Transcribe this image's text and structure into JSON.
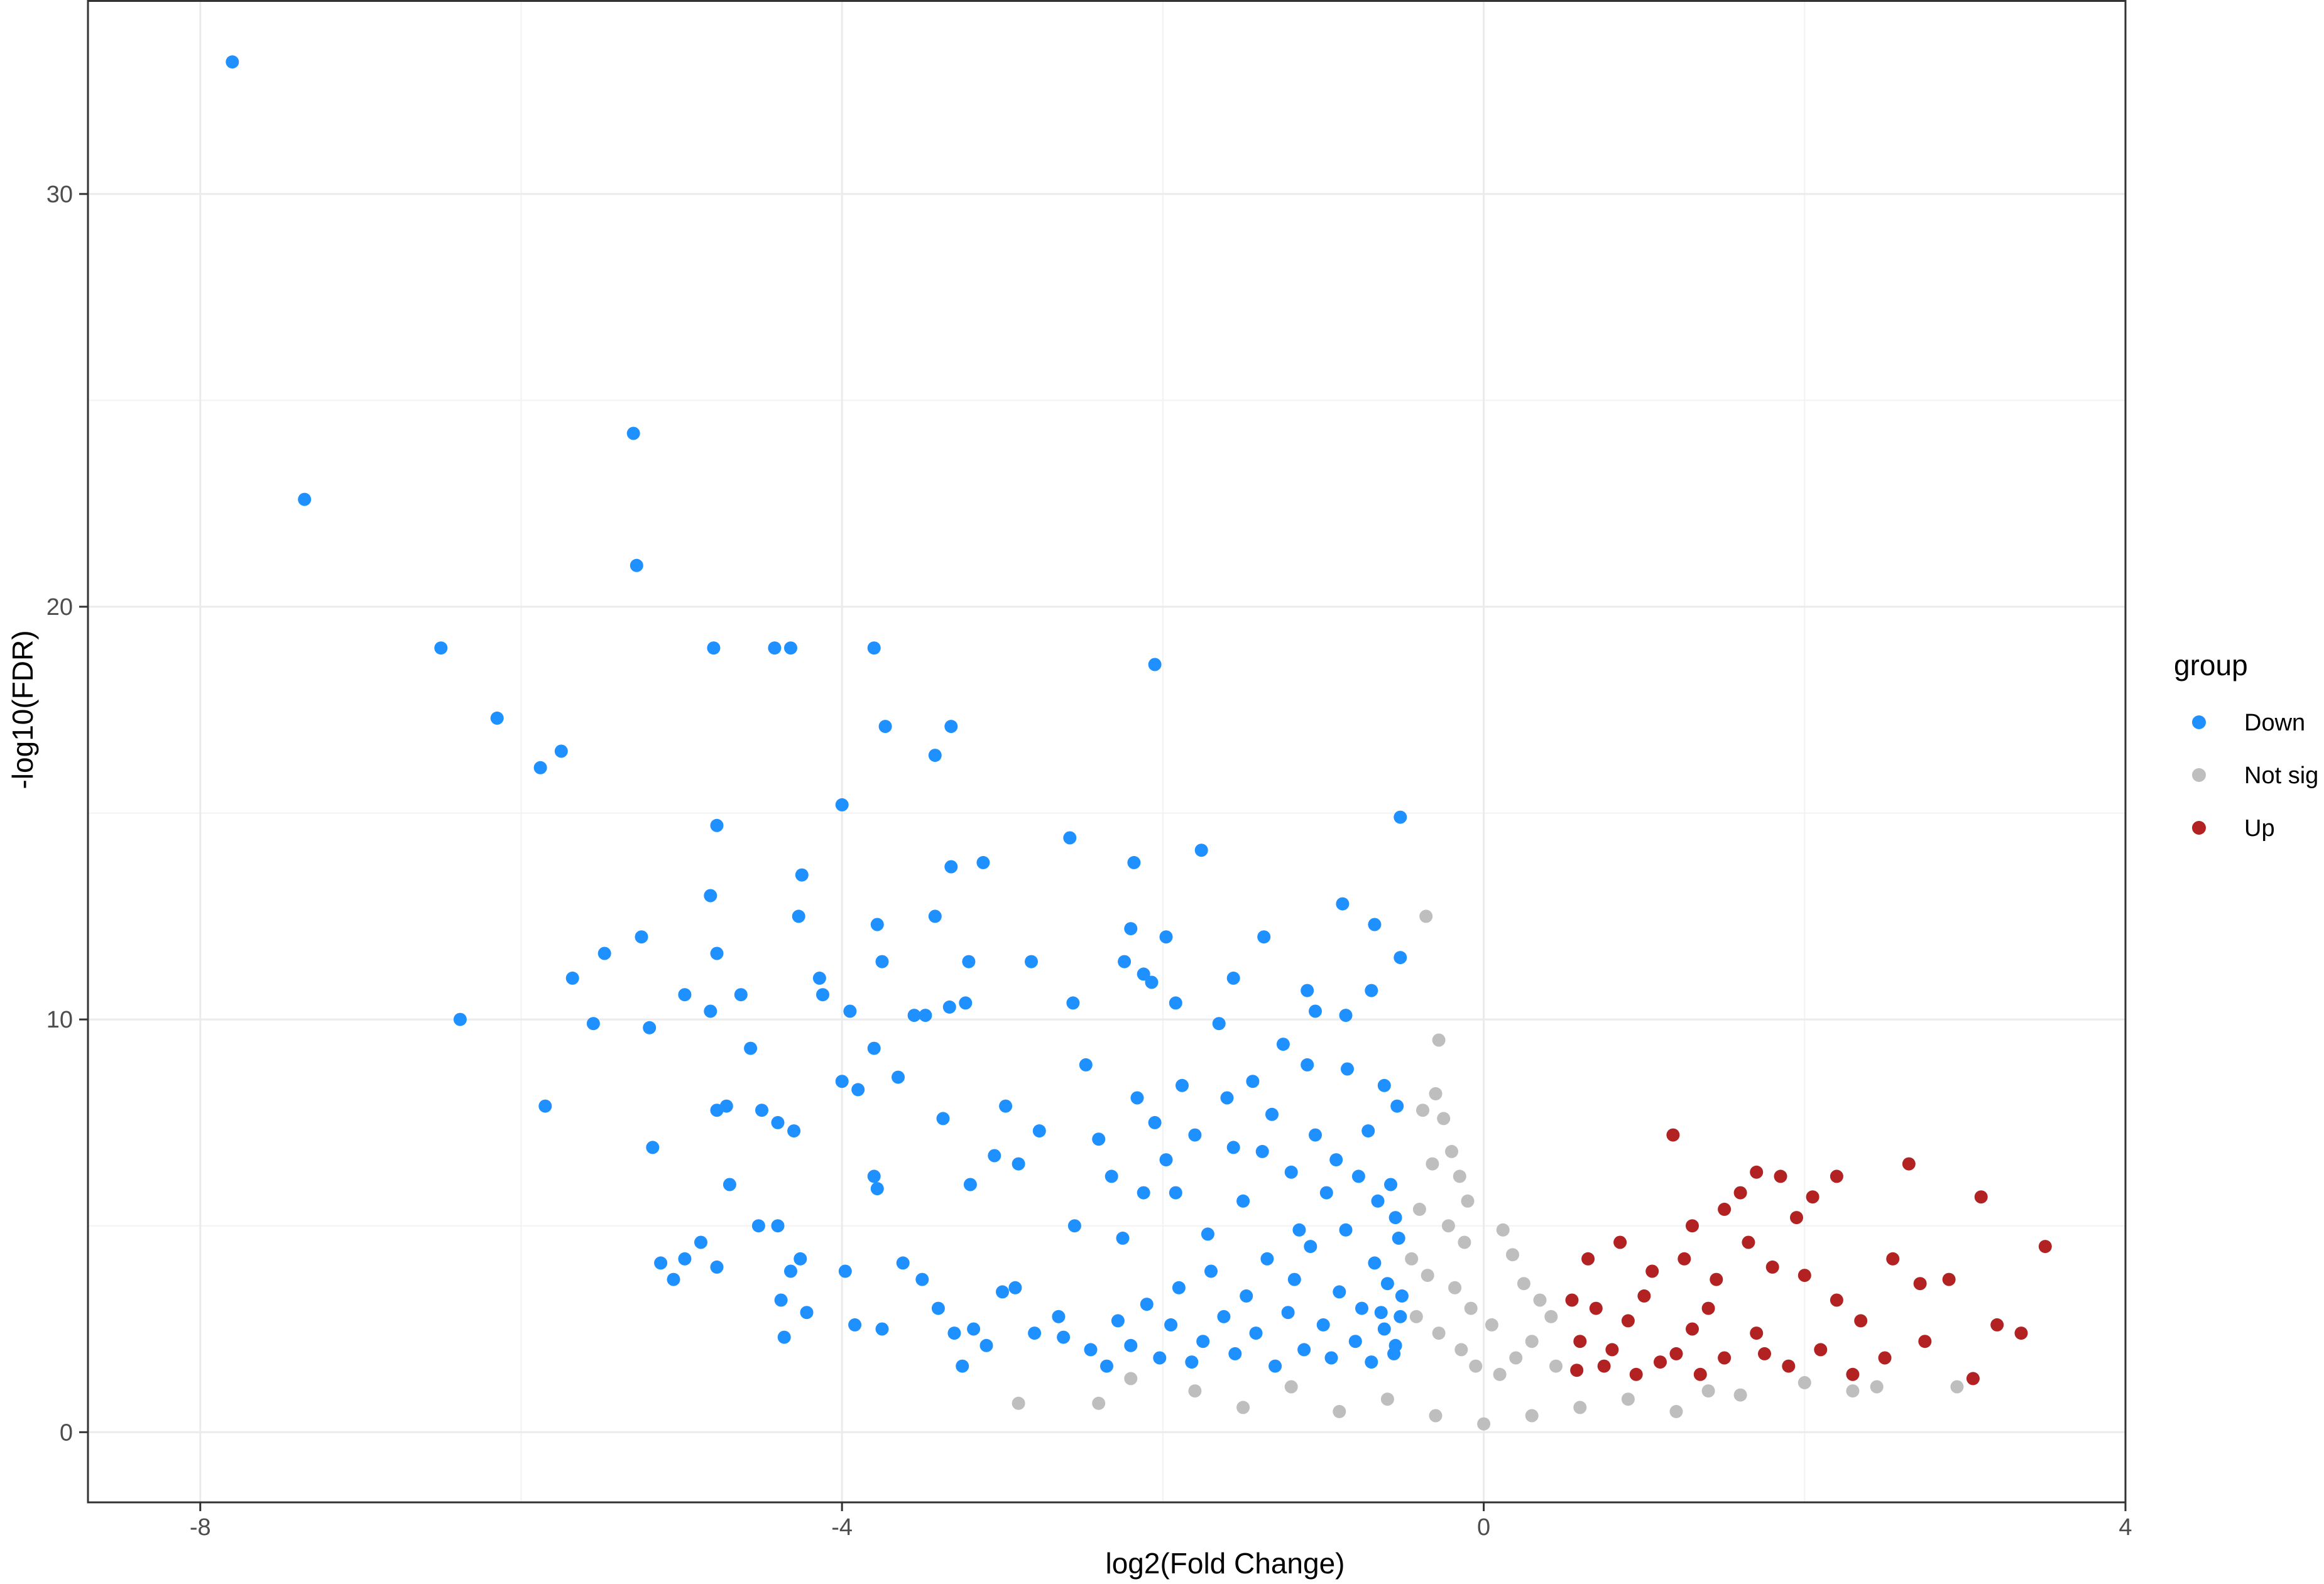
{
  "chart_data": {
    "type": "scatter",
    "title": "",
    "xlabel": "log2(Fold Change)",
    "ylabel": "-log10(FDR)",
    "xlim": [
      -8.7,
      4.0
    ],
    "ylim": [
      -1.7,
      34.7
    ],
    "x_ticks": [
      -8,
      -4,
      0,
      4
    ],
    "y_ticks": [
      0,
      10,
      20,
      30
    ],
    "x_tick_labels": [
      "-8",
      "-4",
      "0",
      "4"
    ],
    "y_tick_labels": [
      "0",
      "10",
      "20",
      "30"
    ],
    "grid": true,
    "legend": {
      "title": "group",
      "position": "right",
      "entries": [
        {
          "label": "Down",
          "color": "#1E90FF"
        },
        {
          "label": "Not sig",
          "color": "#BEBEBE"
        },
        {
          "label": "Up",
          "color": "#B22222"
        }
      ]
    },
    "series": [
      {
        "name": "Down",
        "color": "#1E90FF",
        "points": [
          [
            -7.8,
            33.2
          ],
          [
            -7.35,
            22.6
          ],
          [
            -5.3,
            24.2
          ],
          [
            -5.28,
            21.0
          ],
          [
            -6.5,
            19.0
          ],
          [
            -6.15,
            17.3
          ],
          [
            -5.75,
            16.5
          ],
          [
            -5.88,
            16.1
          ],
          [
            -6.38,
            10.0
          ],
          [
            -5.85,
            7.9
          ],
          [
            -5.68,
            11.0
          ],
          [
            -5.48,
            11.6
          ],
          [
            -5.25,
            12.0
          ],
          [
            -5.55,
            9.9
          ],
          [
            -5.2,
            9.8
          ],
          [
            -4.8,
            19.0
          ],
          [
            -4.42,
            19.0
          ],
          [
            -4.32,
            19.0
          ],
          [
            -3.8,
            19.0
          ],
          [
            -2.05,
            18.6
          ],
          [
            -3.73,
            17.1
          ],
          [
            -3.32,
            17.1
          ],
          [
            -3.42,
            16.4
          ],
          [
            -4.0,
            15.2
          ],
          [
            -4.78,
            14.7
          ],
          [
            -4.82,
            13.0
          ],
          [
            -4.25,
            13.5
          ],
          [
            -4.78,
            11.6
          ],
          [
            -4.27,
            12.5
          ],
          [
            -4.14,
            11.0
          ],
          [
            -4.12,
            10.6
          ],
          [
            -3.42,
            12.5
          ],
          [
            -3.78,
            12.3
          ],
          [
            -3.48,
            10.1
          ],
          [
            -3.23,
            10.4
          ],
          [
            -3.33,
            10.3
          ],
          [
            -3.75,
            11.4
          ],
          [
            -3.21,
            11.4
          ],
          [
            -2.82,
            11.4
          ],
          [
            -2.58,
            14.4
          ],
          [
            -2.18,
            13.8
          ],
          [
            -3.12,
            13.8
          ],
          [
            -3.32,
            13.7
          ],
          [
            -1.76,
            14.1
          ],
          [
            -0.52,
            14.9
          ],
          [
            -0.88,
            12.8
          ],
          [
            -0.68,
            12.3
          ],
          [
            -2.2,
            12.2
          ],
          [
            -1.98,
            12.0
          ],
          [
            -1.37,
            12.0
          ],
          [
            -0.52,
            11.5
          ],
          [
            -2.24,
            11.4
          ],
          [
            -2.12,
            11.1
          ],
          [
            -2.07,
            10.9
          ],
          [
            -1.56,
            11.0
          ],
          [
            -1.1,
            10.7
          ],
          [
            -0.7,
            10.7
          ],
          [
            -2.56,
            10.4
          ],
          [
            -1.92,
            10.4
          ],
          [
            -1.05,
            10.2
          ],
          [
            -0.86,
            10.1
          ],
          [
            -4.98,
            10.6
          ],
          [
            -4.82,
            10.2
          ],
          [
            -4.63,
            10.6
          ],
          [
            -4.57,
            9.3
          ],
          [
            -3.95,
            10.2
          ],
          [
            -3.8,
            9.3
          ],
          [
            -3.55,
            10.1
          ],
          [
            -5.18,
            6.9
          ],
          [
            -5.13,
            4.1
          ],
          [
            -5.05,
            3.7
          ],
          [
            -4.98,
            4.2
          ],
          [
            -4.88,
            4.6
          ],
          [
            -4.78,
            4.0
          ],
          [
            -4.7,
            6.0
          ],
          [
            -4.52,
            5.0
          ],
          [
            -4.4,
            5.0
          ],
          [
            -4.38,
            3.2
          ],
          [
            -4.32,
            3.9
          ],
          [
            -4.26,
            4.2
          ],
          [
            -4.36,
            2.3
          ],
          [
            -4.22,
            2.9
          ],
          [
            -4.4,
            7.5
          ],
          [
            -4.3,
            7.3
          ],
          [
            -4.5,
            7.8
          ],
          [
            -4.78,
            7.8
          ],
          [
            -4.72,
            7.9
          ],
          [
            -4.0,
            8.5
          ],
          [
            -3.9,
            8.3
          ],
          [
            -3.65,
            8.6
          ],
          [
            -3.92,
            2.6
          ],
          [
            -3.98,
            3.9
          ],
          [
            -3.75,
            2.5
          ],
          [
            -3.8,
            6.2
          ],
          [
            -3.78,
            5.9
          ],
          [
            -3.62,
            4.1
          ],
          [
            -3.5,
            3.7
          ],
          [
            -3.37,
            7.6
          ],
          [
            -3.2,
            6.0
          ],
          [
            -3.05,
            6.7
          ],
          [
            -2.98,
            7.9
          ],
          [
            -2.9,
            6.5
          ],
          [
            -2.77,
            7.3
          ],
          [
            -3.4,
            3.0
          ],
          [
            -3.3,
            2.4
          ],
          [
            -3.1,
            2.1
          ],
          [
            -3.25,
            1.6
          ],
          [
            -3.18,
            2.5
          ],
          [
            -3.0,
            3.4
          ],
          [
            -2.92,
            3.5
          ],
          [
            -2.8,
            2.4
          ],
          [
            -2.65,
            2.8
          ],
          [
            -2.55,
            5.0
          ],
          [
            -2.48,
            8.9
          ],
          [
            -2.4,
            7.1
          ],
          [
            -2.32,
            6.2
          ],
          [
            -2.25,
            4.7
          ],
          [
            -2.16,
            8.1
          ],
          [
            -2.12,
            5.8
          ],
          [
            -2.05,
            7.5
          ],
          [
            -1.98,
            6.6
          ],
          [
            -1.92,
            5.8
          ],
          [
            -1.88,
            8.4
          ],
          [
            -1.8,
            7.2
          ],
          [
            -1.72,
            4.8
          ],
          [
            -1.65,
            9.9
          ],
          [
            -1.6,
            8.1
          ],
          [
            -1.56,
            6.9
          ],
          [
            -1.5,
            5.6
          ],
          [
            -1.44,
            8.5
          ],
          [
            -1.38,
            6.8
          ],
          [
            -1.32,
            7.7
          ],
          [
            -1.25,
            9.4
          ],
          [
            -1.2,
            6.3
          ],
          [
            -1.15,
            4.9
          ],
          [
            -1.1,
            8.9
          ],
          [
            -1.05,
            7.2
          ],
          [
            -0.98,
            5.8
          ],
          [
            -0.92,
            6.6
          ],
          [
            -0.85,
            8.8
          ],
          [
            -0.78,
            6.2
          ],
          [
            -0.72,
            7.3
          ],
          [
            -0.66,
            5.6
          ],
          [
            -0.62,
            8.4
          ],
          [
            -0.58,
            6.0
          ],
          [
            -0.55,
            5.2
          ],
          [
            -0.54,
            7.9
          ],
          [
            -2.62,
            2.3
          ],
          [
            -2.45,
            2.0
          ],
          [
            -2.35,
            1.6
          ],
          [
            -2.28,
            2.7
          ],
          [
            -2.2,
            2.1
          ],
          [
            -2.1,
            3.1
          ],
          [
            -2.02,
            1.8
          ],
          [
            -1.95,
            2.6
          ],
          [
            -1.9,
            3.5
          ],
          [
            -1.82,
            1.7
          ],
          [
            -1.75,
            2.2
          ],
          [
            -1.7,
            3.9
          ],
          [
            -1.62,
            2.8
          ],
          [
            -1.55,
            1.9
          ],
          [
            -1.48,
            3.3
          ],
          [
            -1.42,
            2.4
          ],
          [
            -1.35,
            4.2
          ],
          [
            -1.3,
            1.6
          ],
          [
            -1.22,
            2.9
          ],
          [
            -1.18,
            3.7
          ],
          [
            -1.12,
            2.0
          ],
          [
            -1.08,
            4.5
          ],
          [
            -1.0,
            2.6
          ],
          [
            -0.95,
            1.8
          ],
          [
            -0.9,
            3.4
          ],
          [
            -0.86,
            4.9
          ],
          [
            -0.8,
            2.2
          ],
          [
            -0.76,
            3.0
          ],
          [
            -0.7,
            1.7
          ],
          [
            -0.68,
            4.1
          ],
          [
            -0.62,
            2.5
          ],
          [
            -0.6,
            3.6
          ],
          [
            -0.56,
            1.9
          ],
          [
            -0.53,
            4.7
          ],
          [
            -0.52,
            2.8
          ],
          [
            -0.51,
            3.3
          ],
          [
            -0.55,
            2.1
          ],
          [
            -0.64,
            2.9
          ]
        ]
      },
      {
        "name": "Not sig",
        "color": "#BEBEBE",
        "points": [
          [
            -0.36,
            12.5
          ],
          [
            -0.28,
            9.5
          ],
          [
            -0.3,
            8.2
          ],
          [
            -0.25,
            7.6
          ],
          [
            -0.38,
            7.8
          ],
          [
            -0.2,
            6.8
          ],
          [
            -0.15,
            6.2
          ],
          [
            -0.1,
            5.6
          ],
          [
            -0.32,
            6.5
          ],
          [
            -0.4,
            5.4
          ],
          [
            -0.22,
            5.0
          ],
          [
            -0.12,
            4.6
          ],
          [
            -0.45,
            4.2
          ],
          [
            -0.35,
            3.8
          ],
          [
            -0.18,
            3.5
          ],
          [
            -0.08,
            3.0
          ],
          [
            -0.42,
            2.8
          ],
          [
            -0.28,
            2.4
          ],
          [
            -0.14,
            2.0
          ],
          [
            -0.05,
            1.6
          ],
          [
            0.12,
            4.9
          ],
          [
            0.18,
            4.3
          ],
          [
            0.25,
            3.6
          ],
          [
            0.35,
            3.2
          ],
          [
            0.42,
            2.8
          ],
          [
            0.3,
            2.2
          ],
          [
            0.2,
            1.8
          ],
          [
            0.1,
            1.4
          ],
          [
            0.45,
            1.6
          ],
          [
            0.05,
            2.6
          ],
          [
            -2.9,
            0.7
          ],
          [
            -2.4,
            0.7
          ],
          [
            -2.2,
            1.3
          ],
          [
            -1.8,
            1.0
          ],
          [
            -1.5,
            0.6
          ],
          [
            -1.2,
            1.1
          ],
          [
            -0.9,
            0.5
          ],
          [
            -0.6,
            0.8
          ],
          [
            -0.3,
            0.4
          ],
          [
            0.0,
            0.2
          ],
          [
            0.3,
            0.4
          ],
          [
            0.6,
            0.6
          ],
          [
            0.9,
            0.8
          ],
          [
            1.2,
            0.5
          ],
          [
            1.4,
            1.0
          ],
          [
            1.6,
            0.9
          ],
          [
            2.0,
            1.2
          ],
          [
            2.3,
            1.0
          ],
          [
            2.45,
            1.1
          ],
          [
            2.95,
            1.1
          ]
        ]
      },
      {
        "name": "Up",
        "color": "#B22222",
        "points": [
          [
            1.18,
            7.2
          ],
          [
            2.65,
            6.5
          ],
          [
            1.7,
            6.3
          ],
          [
            1.85,
            6.2
          ],
          [
            2.2,
            6.2
          ],
          [
            3.1,
            5.7
          ],
          [
            1.6,
            5.8
          ],
          [
            2.05,
            5.7
          ],
          [
            1.95,
            5.2
          ],
          [
            1.5,
            5.4
          ],
          [
            1.3,
            5.0
          ],
          [
            3.5,
            4.5
          ],
          [
            2.55,
            4.2
          ],
          [
            2.9,
            3.7
          ],
          [
            2.72,
            3.6
          ],
          [
            3.2,
            2.6
          ],
          [
            3.35,
            2.4
          ],
          [
            2.75,
            2.2
          ],
          [
            3.05,
            1.3
          ],
          [
            2.5,
            1.8
          ],
          [
            2.35,
            2.7
          ],
          [
            2.2,
            3.2
          ],
          [
            2.0,
            3.8
          ],
          [
            1.8,
            4.0
          ],
          [
            1.65,
            4.6
          ],
          [
            1.45,
            3.7
          ],
          [
            1.25,
            4.2
          ],
          [
            1.05,
            3.9
          ],
          [
            0.85,
            4.6
          ],
          [
            0.65,
            4.2
          ],
          [
            0.55,
            3.2
          ],
          [
            0.6,
            2.2
          ],
          [
            0.75,
            1.6
          ],
          [
            0.9,
            2.7
          ],
          [
            1.1,
            1.7
          ],
          [
            1.3,
            2.5
          ],
          [
            1.5,
            1.8
          ],
          [
            1.7,
            2.4
          ],
          [
            1.9,
            1.6
          ],
          [
            2.1,
            2.0
          ],
          [
            0.7,
            3.0
          ],
          [
            0.8,
            2.0
          ],
          [
            1.0,
            3.3
          ],
          [
            1.2,
            1.9
          ],
          [
            1.4,
            3.0
          ],
          [
            0.58,
            1.5
          ],
          [
            0.95,
            1.4
          ],
          [
            1.35,
            1.4
          ],
          [
            1.75,
            1.9
          ],
          [
            2.3,
            1.4
          ]
        ]
      }
    ]
  }
}
